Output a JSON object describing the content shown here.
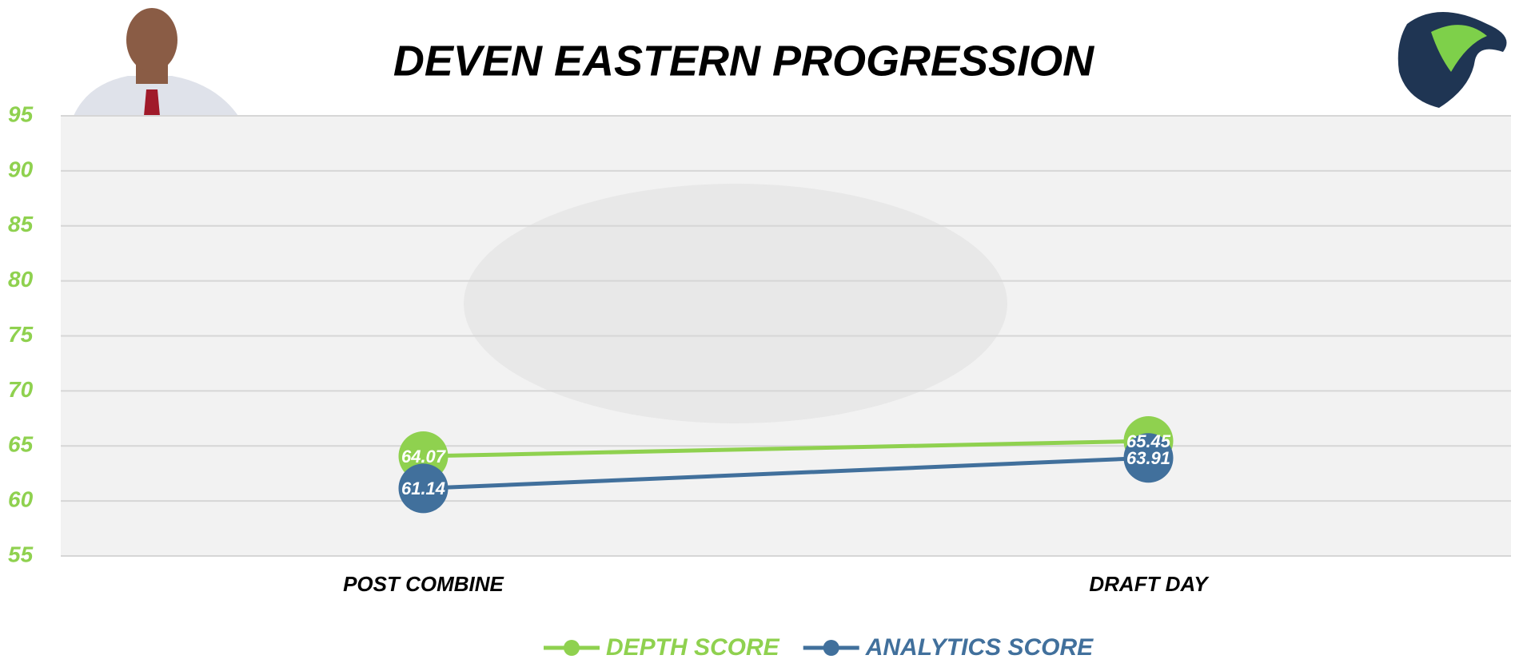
{
  "chart_data": {
    "type": "line",
    "title": "DEVEN EASTERN PROGRESSION",
    "categories": [
      "POST COMBINE",
      "DRAFT DAY"
    ],
    "series": [
      {
        "name": "DEPTH SCORE",
        "color": "#8fd14f",
        "values": [
          64.07,
          65.45
        ]
      },
      {
        "name": "ANALYTICS SCORE",
        "color": "#41709c",
        "values": [
          61.14,
          63.91
        ]
      }
    ],
    "ylim": [
      55,
      95
    ],
    "yticks": [
      55,
      60,
      65,
      70,
      75,
      80,
      85,
      90,
      95
    ],
    "grid": true,
    "tick_color": "#8fd14f",
    "legend": "bottom"
  }
}
